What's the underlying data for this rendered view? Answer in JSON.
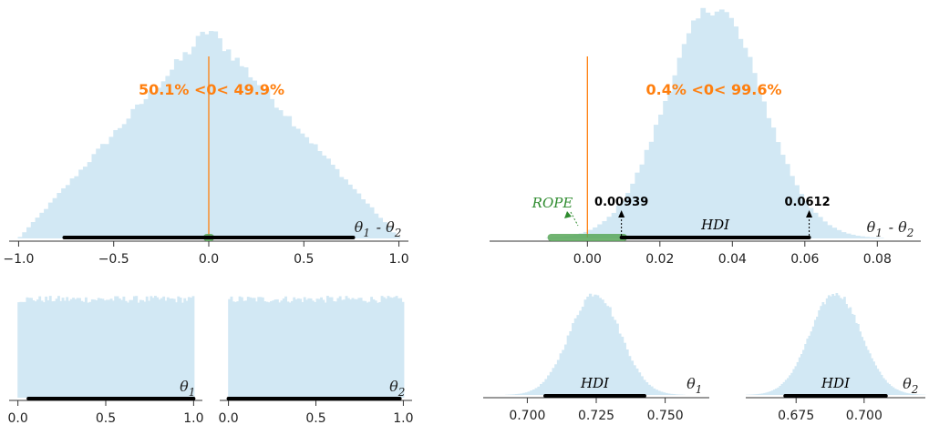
{
  "chart_data": [
    {
      "id": "diff_wide",
      "type": "histogram",
      "xlabel": "θ1 - θ2",
      "xlim": [
        -1.05,
        1.05
      ],
      "xticks": [
        -1.0,
        -0.5,
        0.0,
        0.5,
        1.0
      ],
      "xtick_labels": [
        "−1.0",
        "−0.5",
        "0.0",
        "0.5",
        "1.0"
      ],
      "distribution": {
        "shape": "triangular",
        "center": 0.0,
        "support": [
          -1.0,
          1.0
        ],
        "peak_density": 1.0
      },
      "reference_line": 0.0,
      "reference_text": "50.1% <0< 49.9%",
      "hdi": [
        -0.76,
        0.76
      ],
      "rope": [
        -0.01,
        0.01
      ],
      "colors": {
        "hist": "#d2e8f4",
        "hdi": "#000000",
        "rope": "#5aa85a",
        "ref": "#ff7f0e"
      }
    },
    {
      "id": "diff_narrow",
      "type": "histogram",
      "xlabel": "θ1 - θ2",
      "xlim": [
        -0.027,
        0.092
      ],
      "xticks": [
        0.0,
        0.02,
        0.04,
        0.06,
        0.08
      ],
      "xtick_labels": [
        "0.00",
        "0.02",
        "0.04",
        "0.06",
        "0.08"
      ],
      "distribution": {
        "shape": "normal",
        "mean": 0.035,
        "sd": 0.0133
      },
      "reference_line": 0.0,
      "reference_text": "0.4% <0< 99.6%",
      "hdi": [
        0.00939,
        0.0612
      ],
      "hdi_labels": [
        "0.00939",
        "0.0612"
      ],
      "hdi_text": "HDI",
      "rope": [
        -0.01,
        0.01
      ],
      "rope_text": "ROPE",
      "colors": {
        "hist": "#d2e8f4",
        "hdi": "#000000",
        "rope": "#5aa85a",
        "ref": "#ff7f0e",
        "rope_text": "#2e8b2e"
      }
    },
    {
      "id": "theta1_uniform",
      "type": "histogram",
      "xlabel": "θ1",
      "xlim": [
        -0.05,
        1.05
      ],
      "xticks": [
        0.0,
        0.5,
        1.0
      ],
      "xtick_labels": [
        "0.0",
        "0.5",
        "1.0"
      ],
      "distribution": {
        "shape": "uniform",
        "support": [
          0.0,
          1.0
        ]
      },
      "hdi": [
        0.06,
        1.0
      ]
    },
    {
      "id": "theta2_uniform",
      "type": "histogram",
      "xlabel": "θ2",
      "xlim": [
        -0.05,
        1.05
      ],
      "xticks": [
        0.0,
        0.5,
        1.0
      ],
      "xtick_labels": [
        "0.0",
        "0.5",
        "1.0"
      ],
      "distribution": {
        "shape": "uniform",
        "support": [
          0.0,
          1.0
        ]
      },
      "hdi": [
        0.0,
        0.98
      ]
    },
    {
      "id": "theta1_narrow",
      "type": "histogram",
      "xlabel": "θ1",
      "xlim": [
        0.684,
        0.766
      ],
      "xticks": [
        0.7,
        0.725,
        0.75
      ],
      "xtick_labels": [
        "0.700",
        "0.725",
        "0.750"
      ],
      "distribution": {
        "shape": "normal",
        "mean": 0.7245,
        "sd": 0.0092
      },
      "hdi": [
        0.7065,
        0.7425
      ],
      "hdi_text": "HDI"
    },
    {
      "id": "theta2_narrow",
      "type": "histogram",
      "xlabel": "θ2",
      "xlim": [
        0.6565,
        0.7225
      ],
      "xticks": [
        0.675,
        0.7
      ],
      "xtick_labels": [
        "0.675",
        "0.700"
      ],
      "distribution": {
        "shape": "normal",
        "mean": 0.6895,
        "sd": 0.0093
      },
      "hdi": [
        0.671,
        0.708
      ],
      "hdi_text": "HDI"
    }
  ]
}
